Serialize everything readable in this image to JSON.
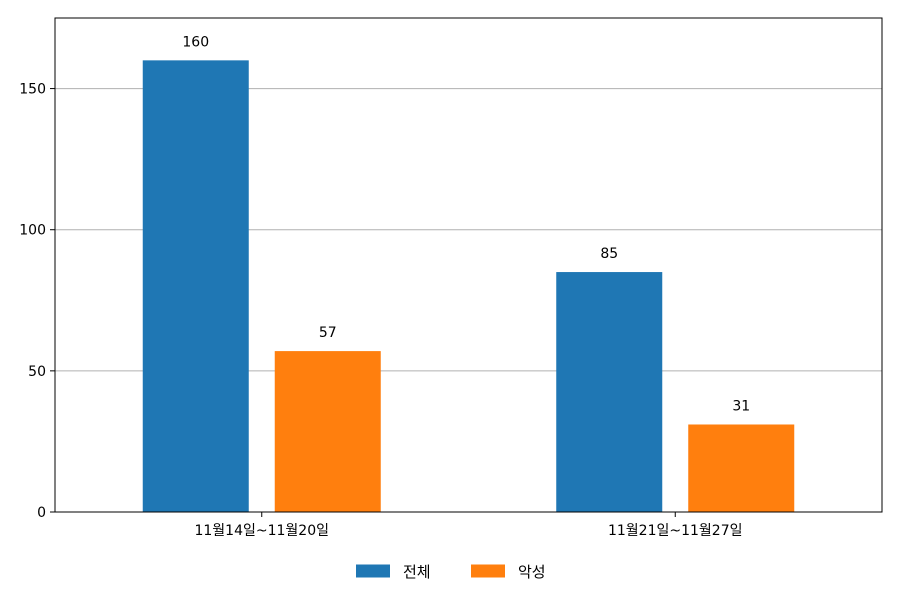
{
  "chart_data": {
    "type": "bar",
    "categories": [
      "11월14일~11월20일",
      "11월21일~11월27일"
    ],
    "series": [
      {
        "name": "전체",
        "values": [
          160,
          85
        ],
        "color": "#1f77b4"
      },
      {
        "name": "악성",
        "values": [
          57,
          31
        ],
        "color": "#ff7f0e"
      }
    ],
    "ylim": [
      0,
      175
    ],
    "yticks": [
      0,
      50,
      100,
      150
    ],
    "grid": "y",
    "legend": "bottom-center",
    "title": "",
    "xlabel": "",
    "ylabel": ""
  }
}
